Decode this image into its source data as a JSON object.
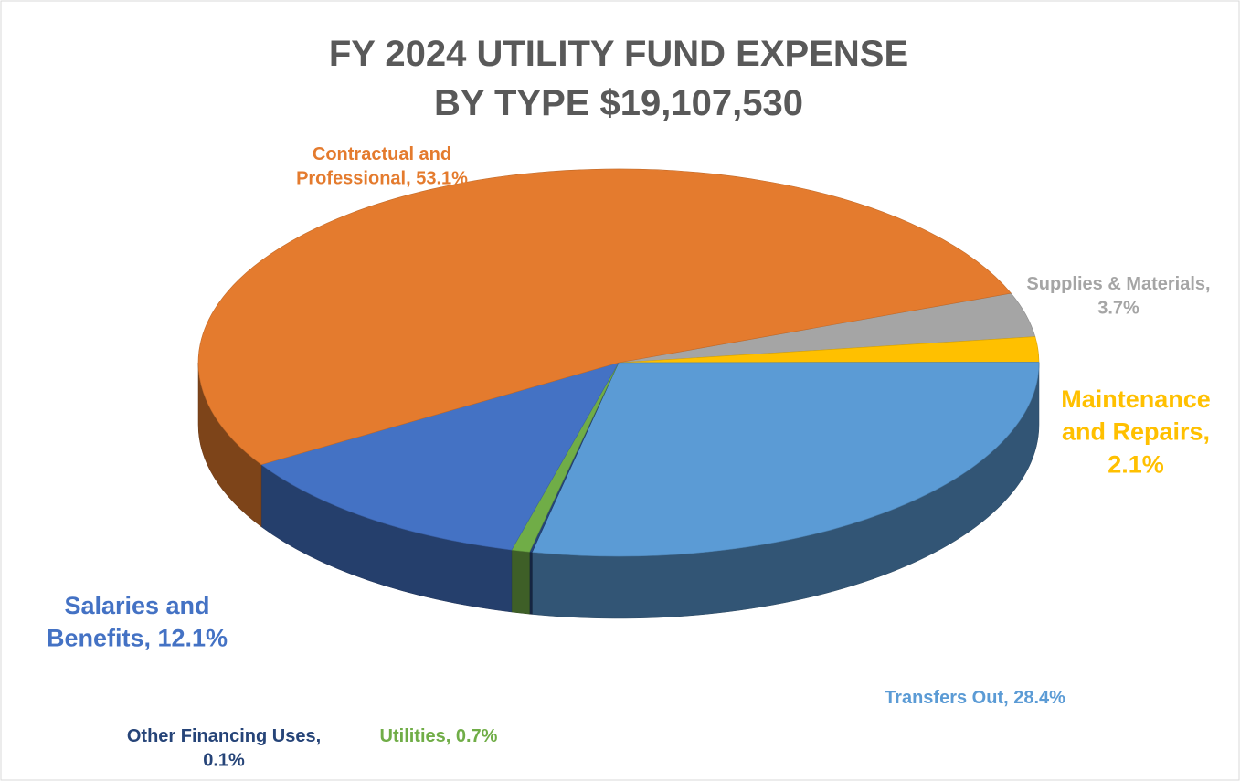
{
  "chart_data": {
    "type": "pie",
    "title": "FY 2024 UTILITY FUND EXPENSE BY TYPE $19,107,530",
    "categories": [
      "Supplies & Materials",
      "Maintenance and Repairs",
      "Transfers Out",
      "Other Financing Uses",
      "Utilities",
      "Salaries and Benefits",
      "Contractual and Professional"
    ],
    "values": [
      3.7,
      2.1,
      28.4,
      0.1,
      0.7,
      12.1,
      53.1
    ],
    "value_labels": [
      "Supplies & Materials, 3.7%",
      "Maintenance and Repairs, 2.1%",
      "Transfers Out, 28.4%",
      "Other Financing Uses, 0.1%",
      "Utilities, 0.7%",
      "Salaries and Benefits, 12.1%",
      "Contractual and Professional, 53.1%"
    ],
    "colors": [
      "#A5A5A5",
      "#FFC000",
      "#5B9BD5",
      "#264478",
      "#70AD47",
      "#4472C4",
      "#E47B2E"
    ]
  }
}
